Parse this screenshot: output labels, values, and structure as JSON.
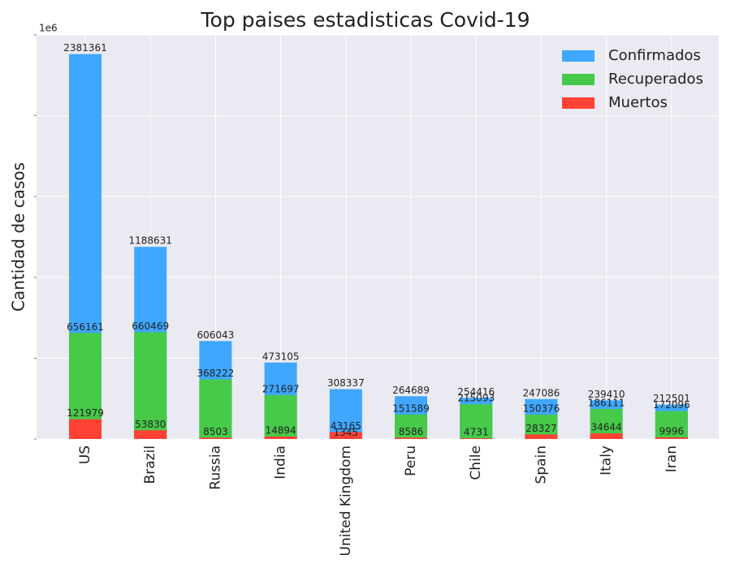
{
  "chart_data": {
    "type": "bar",
    "overlap": true,
    "title": "Top paises estadisticas Covid-19",
    "y_label": "Cantidad de casos",
    "y_offset_label": "1e6",
    "categories": [
      "US",
      "Brazil",
      "Russia",
      "India",
      "United Kingdom",
      "Peru",
      "Chile",
      "Spain",
      "Italy",
      "Iran"
    ],
    "series": [
      {
        "name": "Confirmados",
        "color": "#3fa7ff",
        "values": [
          2381361,
          1188631,
          606043,
          473105,
          308337,
          264689,
          254416,
          247086,
          239410,
          212501
        ]
      },
      {
        "name": "Recuperados",
        "color": "#47c94a",
        "values": [
          656161,
          660469,
          368222,
          271697,
          1345,
          151589,
          215093,
          150376,
          186111,
          172096
        ]
      },
      {
        "name": "Muertos",
        "color": "#ff4234",
        "values": [
          121979,
          53830,
          8503,
          14894,
          43165,
          8586,
          4731,
          28327,
          34644,
          9996
        ]
      }
    ],
    "ylim": [
      0,
      2500000
    ],
    "yticks": [
      0,
      500000,
      1000000,
      1500000,
      2000000,
      2500000
    ],
    "grid": true,
    "legend": "upper right"
  }
}
